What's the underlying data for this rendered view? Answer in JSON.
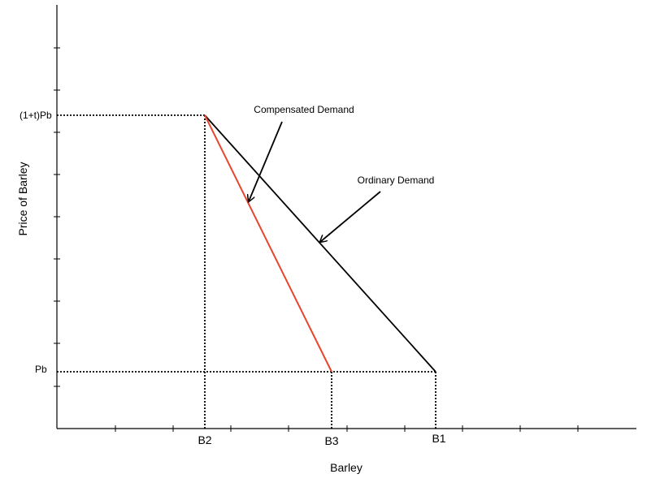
{
  "diagram": {
    "x_axis_title": "Barley",
    "y_axis_title": "Price of Barley",
    "price_labels": {
      "high": "(1+t)Pb",
      "low": "Pb"
    },
    "quantity_labels": {
      "b2": "B2",
      "b3": "B3",
      "b1": "B1"
    },
    "curves": {
      "ordinary": {
        "label": "Ordinary Demand",
        "color": "#000000"
      },
      "compensated": {
        "label": "Compensated Demand",
        "color": "#e8452c"
      }
    }
  }
}
